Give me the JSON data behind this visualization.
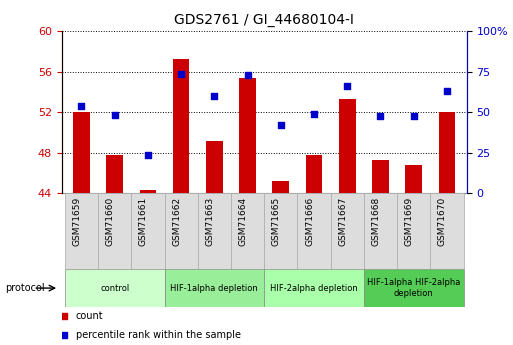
{
  "title": "GDS2761 / GI_44680104-I",
  "samples": [
    "GSM71659",
    "GSM71660",
    "GSM71661",
    "GSM71662",
    "GSM71663",
    "GSM71664",
    "GSM71665",
    "GSM71666",
    "GSM71667",
    "GSM71668",
    "GSM71669",
    "GSM71670"
  ],
  "count_values": [
    52.0,
    47.8,
    44.3,
    57.2,
    49.2,
    55.4,
    45.2,
    47.8,
    53.3,
    47.3,
    46.8,
    52.0
  ],
  "percentile_values": [
    53.5,
    48.5,
    23.5,
    73.5,
    60.0,
    73.0,
    42.0,
    49.0,
    66.0,
    47.5,
    47.5,
    63.0
  ],
  "ylim_left": [
    44,
    60
  ],
  "ylim_right": [
    0,
    100
  ],
  "yticks_left": [
    44,
    48,
    52,
    56,
    60
  ],
  "yticks_right": [
    0,
    25,
    50,
    75,
    100
  ],
  "bar_color": "#cc0000",
  "dot_color": "#0000cc",
  "protocol_groups": [
    {
      "label": "control",
      "start": 0,
      "end": 2,
      "color": "#ccffcc"
    },
    {
      "label": "HIF-1alpha depletion",
      "start": 3,
      "end": 5,
      "color": "#99ee99"
    },
    {
      "label": "HIF-2alpha depletion",
      "start": 6,
      "end": 8,
      "color": "#aaffaa"
    },
    {
      "label": "HIF-1alpha HIF-2alpha\ndepletion",
      "start": 9,
      "end": 11,
      "color": "#55cc55"
    }
  ],
  "ylabel_left_color": "#cc0000",
  "ylabel_right_color": "#0000cc",
  "figsize": [
    5.13,
    3.45
  ],
  "dpi": 100
}
